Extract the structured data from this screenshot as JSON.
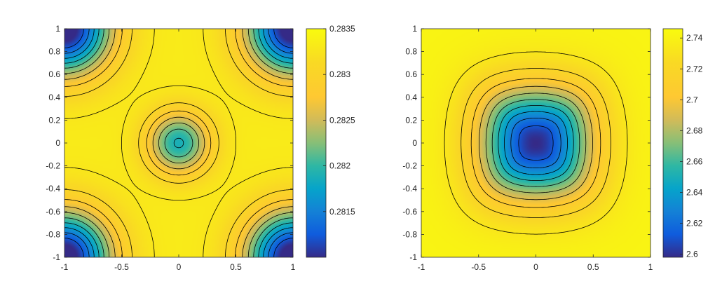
{
  "chart_data": [
    {
      "type": "heatmap",
      "subtype": "filled-contour",
      "title": "",
      "xlabel": "",
      "ylabel": "",
      "xlim": [
        -1,
        1
      ],
      "ylim": [
        -1,
        1
      ],
      "x_ticks": [
        "-1",
        "-0.5",
        "0",
        "0.5",
        "1"
      ],
      "y_ticks": [
        "-1",
        "-0.8",
        "-0.6",
        "-0.4",
        "-0.2",
        "0",
        "0.2",
        "0.4",
        "0.6",
        "0.8",
        "1"
      ],
      "colormap": "parula",
      "clim": [
        0.281,
        0.2835
      ],
      "colorbar_ticks": [
        "0.2815",
        "0.282",
        "0.2825",
        "0.283",
        "0.2835"
      ],
      "colorbar_tick_values": [
        0.2815,
        0.282,
        0.2825,
        0.283,
        0.2835
      ],
      "contour_levels": 10,
      "features": {
        "min_corners": [
          [
            -1,
            -1
          ],
          [
            -1,
            1
          ],
          [
            1,
            -1
          ],
          [
            1,
            1
          ]
        ],
        "local_min_center": [
          0,
          0
        ],
        "max_region": "yellow cross-shaped band between center and corners"
      }
    },
    {
      "type": "heatmap",
      "subtype": "filled-contour",
      "title": "",
      "xlabel": "",
      "ylabel": "",
      "xlim": [
        -1,
        1
      ],
      "ylim": [
        -1,
        1
      ],
      "x_ticks": [
        "-1",
        "-0.5",
        "0",
        "0.5",
        "1"
      ],
      "y_ticks": [
        "-1",
        "-0.8",
        "-0.6",
        "-0.4",
        "-0.2",
        "0",
        "0.2",
        "0.4",
        "0.6",
        "0.8",
        "1"
      ],
      "colormap": "parula",
      "clim": [
        2.598,
        2.746
      ],
      "colorbar_ticks": [
        "2.6",
        "2.62",
        "2.64",
        "2.66",
        "2.68",
        "2.7",
        "2.72",
        "2.74"
      ],
      "colorbar_tick_values": [
        2.6,
        2.62,
        2.64,
        2.66,
        2.68,
        2.7,
        2.72,
        2.74
      ],
      "contour_levels": 10,
      "features": {
        "min_center": [
          0,
          0
        ],
        "max_region": "outer border"
      }
    }
  ]
}
